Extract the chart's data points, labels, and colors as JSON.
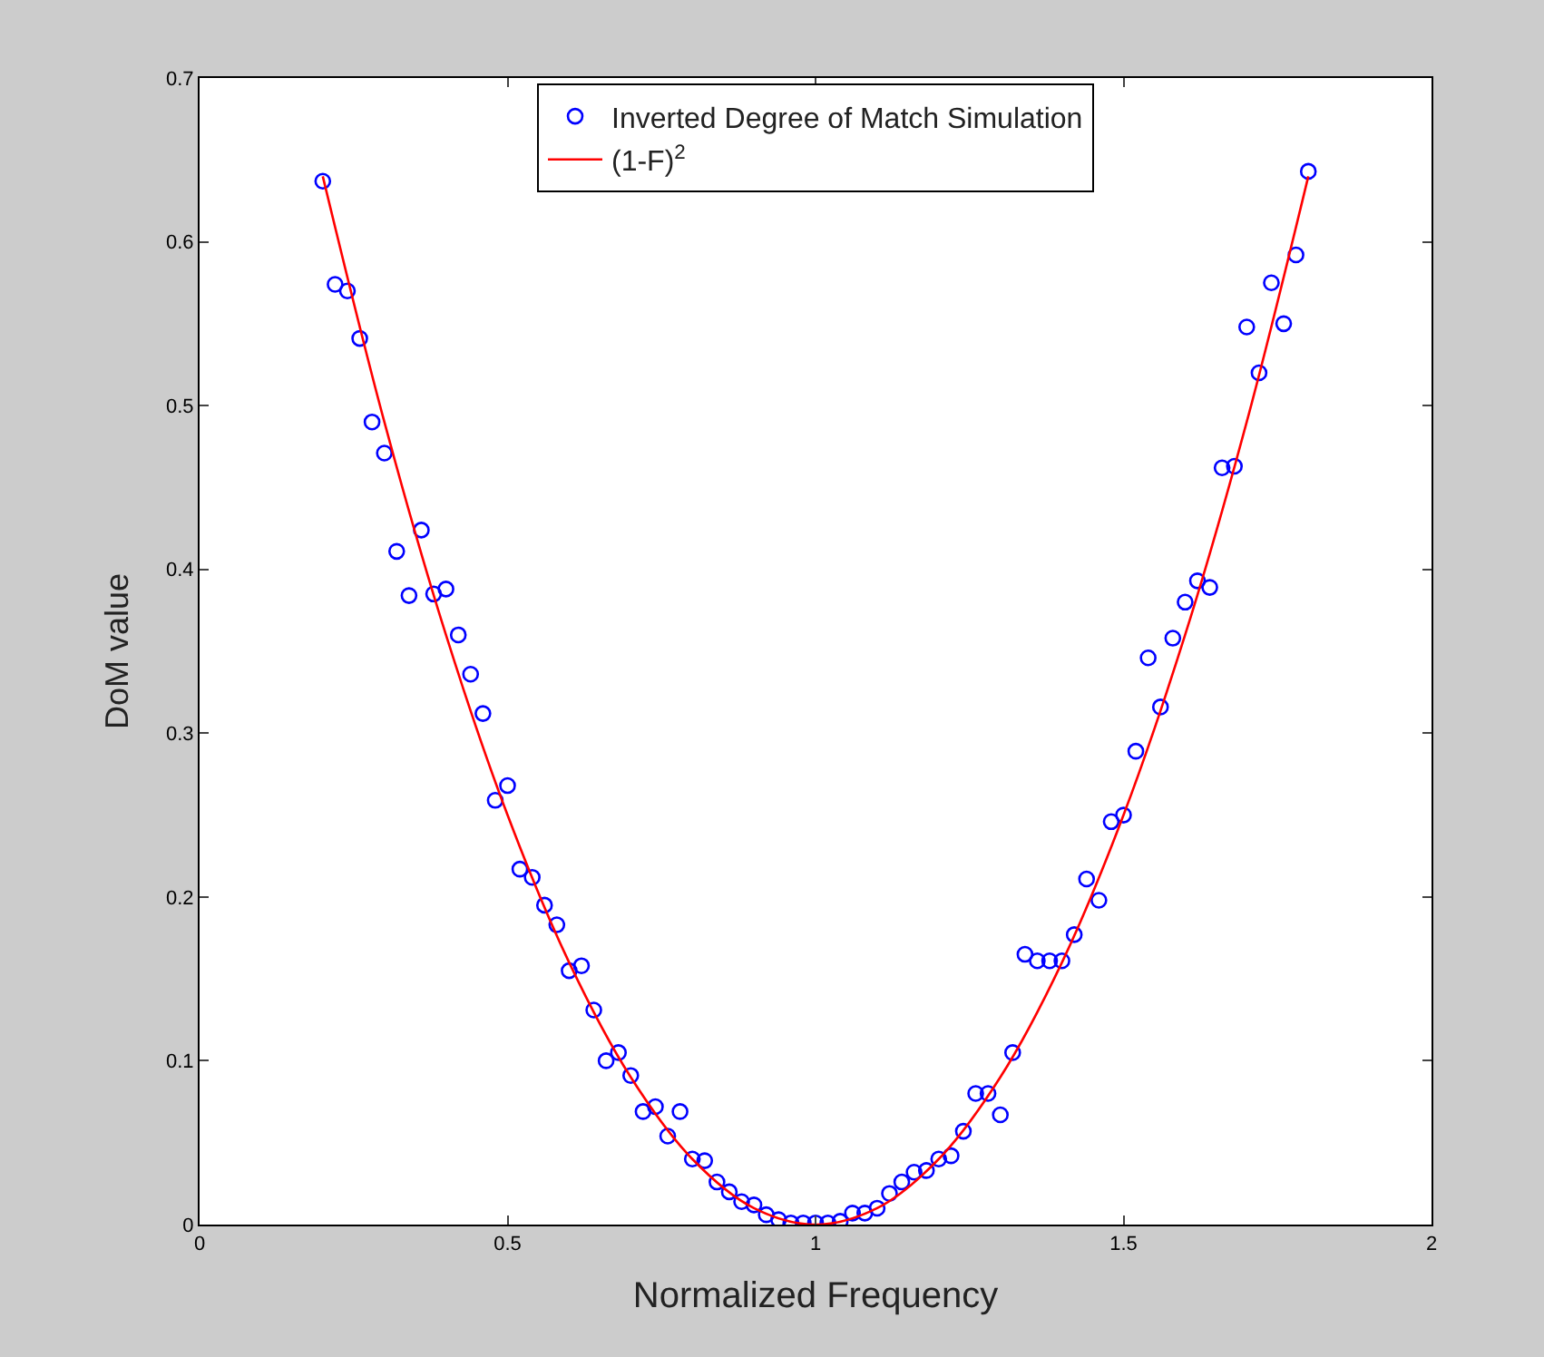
{
  "chart_data": {
    "type": "scatter",
    "xlabel": "Normalized Frequency",
    "ylabel": "DoM value",
    "xlim": [
      0,
      2
    ],
    "xticks": [
      0,
      0.5,
      1,
      1.5,
      2
    ],
    "ylim": [
      0,
      0.7
    ],
    "yticks": [
      0,
      0.1,
      0.2,
      0.3,
      0.4,
      0.5,
      0.6,
      0.7
    ],
    "legend": "top",
    "marker": "circle",
    "series": [
      {
        "name": "Inverted Degree of Match Simulation",
        "color": "#0000ff",
        "x": [
          0.2,
          0.22,
          0.24,
          0.26,
          0.28,
          0.3,
          0.32,
          0.34,
          0.36,
          0.38,
          0.4,
          0.42,
          0.44,
          0.46,
          0.48,
          0.5,
          0.52,
          0.54,
          0.56,
          0.58,
          0.6,
          0.62,
          0.64,
          0.66,
          0.68,
          0.7,
          0.72,
          0.74,
          0.76,
          0.78,
          0.8,
          0.82,
          0.84,
          0.86,
          0.88,
          0.9,
          0.92,
          0.94,
          0.96,
          0.98,
          1.0,
          1.02,
          1.04,
          1.06,
          1.08,
          1.1,
          1.12,
          1.14,
          1.16,
          1.18,
          1.2,
          1.22,
          1.24,
          1.26,
          1.28,
          1.3,
          1.32,
          1.34,
          1.36,
          1.38,
          1.4,
          1.42,
          1.44,
          1.46,
          1.48,
          1.5,
          1.52,
          1.54,
          1.56,
          1.58,
          1.6,
          1.62,
          1.64,
          1.66,
          1.68,
          1.7,
          1.72,
          1.74,
          1.76,
          1.78,
          1.8
        ],
        "values": [
          0.637,
          0.574,
          0.57,
          0.541,
          0.49,
          0.471,
          0.411,
          0.384,
          0.424,
          0.385,
          0.388,
          0.36,
          0.336,
          0.312,
          0.259,
          0.268,
          0.217,
          0.212,
          0.195,
          0.183,
          0.155,
          0.158,
          0.131,
          0.1,
          0.105,
          0.091,
          0.069,
          0.072,
          0.054,
          0.069,
          0.04,
          0.039,
          0.026,
          0.02,
          0.014,
          0.012,
          0.006,
          0.003,
          0.001,
          0.001,
          0.001,
          0.001,
          0.002,
          0.007,
          0.007,
          0.01,
          0.019,
          0.026,
          0.032,
          0.033,
          0.04,
          0.042,
          0.057,
          0.08,
          0.08,
          0.067,
          0.105,
          0.165,
          0.161,
          0.161,
          0.161,
          0.177,
          0.211,
          0.198,
          0.246,
          0.25,
          0.289,
          0.346,
          0.316,
          0.358,
          0.38,
          0.393,
          0.389,
          0.462,
          0.463,
          0.548,
          0.52,
          0.575,
          0.55,
          0.592,
          0.643
        ]
      },
      {
        "name": "(1-F)$^{2}$",
        "type": "line",
        "color": "#ff0000",
        "marker": "none",
        "line_style": "solid",
        "x": [
          0.2,
          0.3,
          0.4,
          0.5,
          0.6,
          0.7,
          0.8,
          0.9,
          1.0,
          1.1,
          1.2,
          1.3,
          1.4,
          1.5,
          1.6,
          1.7,
          1.8
        ],
        "values": [
          0.64,
          0.49,
          0.36,
          0.25,
          0.16,
          0.09,
          0.04,
          0.01,
          0,
          0.01,
          0.04,
          0.09,
          0.16,
          0.25,
          0.36,
          0.49,
          0.64
        ]
      }
    ]
  }
}
